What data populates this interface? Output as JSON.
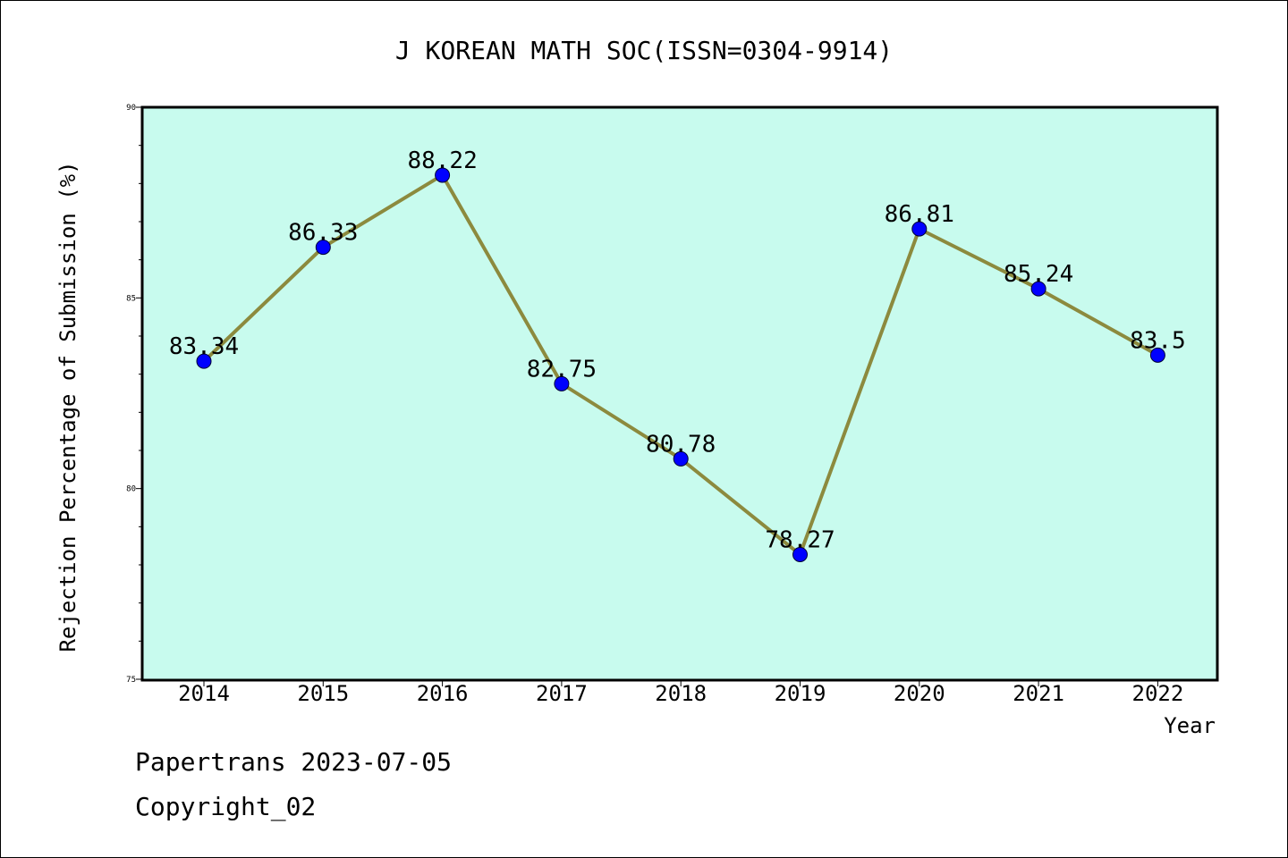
{
  "chart_data": {
    "type": "line",
    "title": "J KOREAN MATH SOC(ISSN=0304-9914)",
    "xlabel": "Year",
    "ylabel": "Rejection Percentage of Submission (%)",
    "categories": [
      "2014",
      "2015",
      "2016",
      "2017",
      "2018",
      "2019",
      "2020",
      "2021",
      "2022"
    ],
    "series": [
      {
        "values": [
          83.34,
          86.33,
          88.22,
          82.75,
          80.78,
          78.27,
          86.81,
          85.24,
          83.5
        ]
      }
    ],
    "data_labels": [
      "83.34",
      "86.33",
      "88.22",
      "82.75",
      "80.78",
      "78.27",
      "86.81",
      "85.24",
      "83.5"
    ],
    "ylim": [
      75,
      90
    ],
    "yticks": [
      "75",
      "80",
      "85",
      "90"
    ],
    "grid": false,
    "colors": {
      "plot_background": "#c8fbee",
      "line": "#8c8a3e",
      "marker": "#0000ff"
    }
  },
  "footer": {
    "line1": "Papertrans 2023-07-05",
    "line2": "Copyright_02"
  }
}
